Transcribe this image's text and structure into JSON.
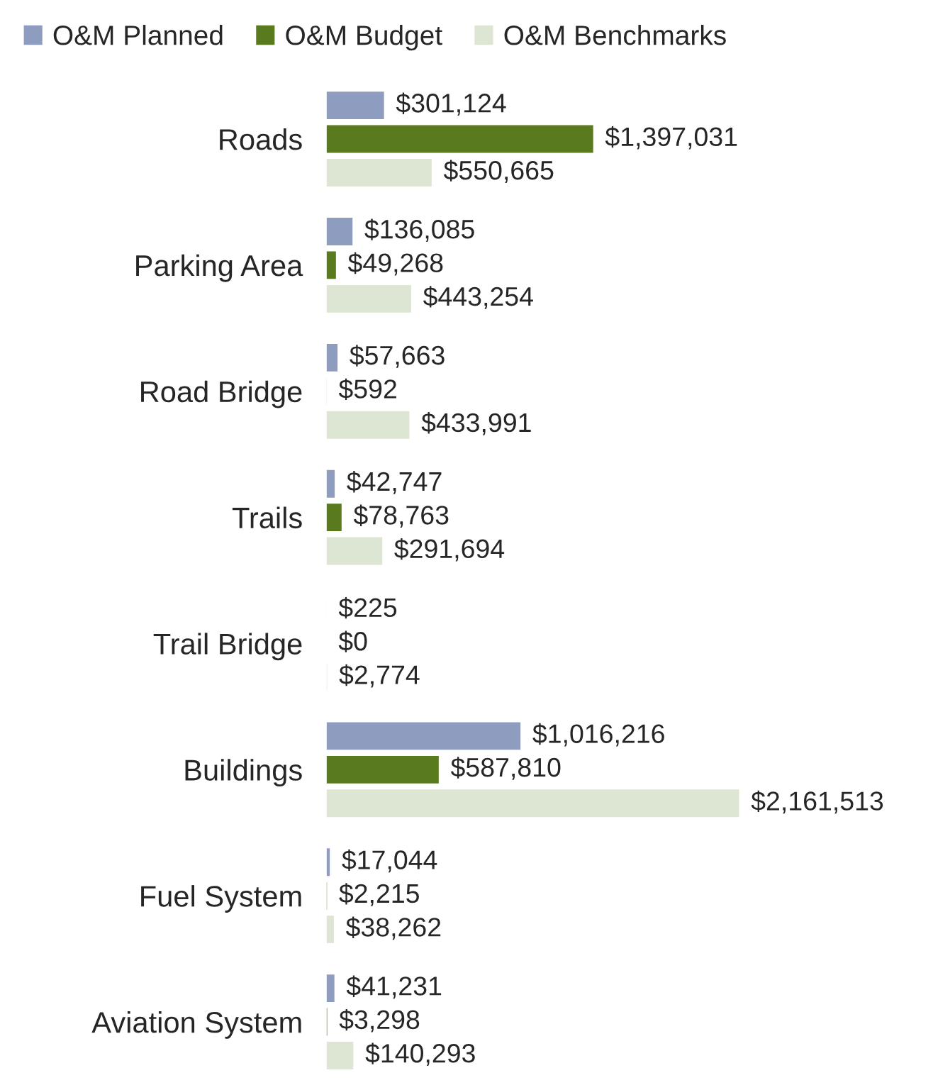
{
  "chart_data": {
    "type": "bar",
    "orientation": "horizontal",
    "legend": "top left",
    "categories": [
      "Roads",
      "Parking Area",
      "Road Bridge",
      "Trails",
      "Trail Bridge",
      "Buildings",
      "Fuel System",
      "Aviation System"
    ],
    "series": [
      {
        "name": "O&M Planned",
        "color": "#8e9dbf",
        "values": [
          301124,
          136085,
          57663,
          42747,
          225,
          1016216,
          17044,
          41231
        ],
        "value_labels": [
          "$301,124",
          "$136,085",
          "$57,663",
          "$42,747",
          "$225",
          "$1,016,216",
          "$17,044",
          "$41,231"
        ]
      },
      {
        "name": "O&M Budget",
        "color": "#5a7a1e",
        "values": [
          1397031,
          49268,
          592,
          78763,
          0,
          587810,
          2215,
          3298
        ],
        "value_labels": [
          "$1,397,031",
          "$49,268",
          "$592",
          "$78,763",
          "$0",
          "$587,810",
          "$2,215",
          "$3,298"
        ]
      },
      {
        "name": "O&M Benchmarks",
        "color": "#dde5d3",
        "values": [
          550665,
          443254,
          433991,
          291694,
          2774,
          2161513,
          38262,
          140293
        ],
        "value_labels": [
          "$550,665",
          "$443,254",
          "$433,991",
          "$291,694",
          "$2,774",
          "$2,161,513",
          "$38,262",
          "$140,293"
        ]
      }
    ]
  }
}
